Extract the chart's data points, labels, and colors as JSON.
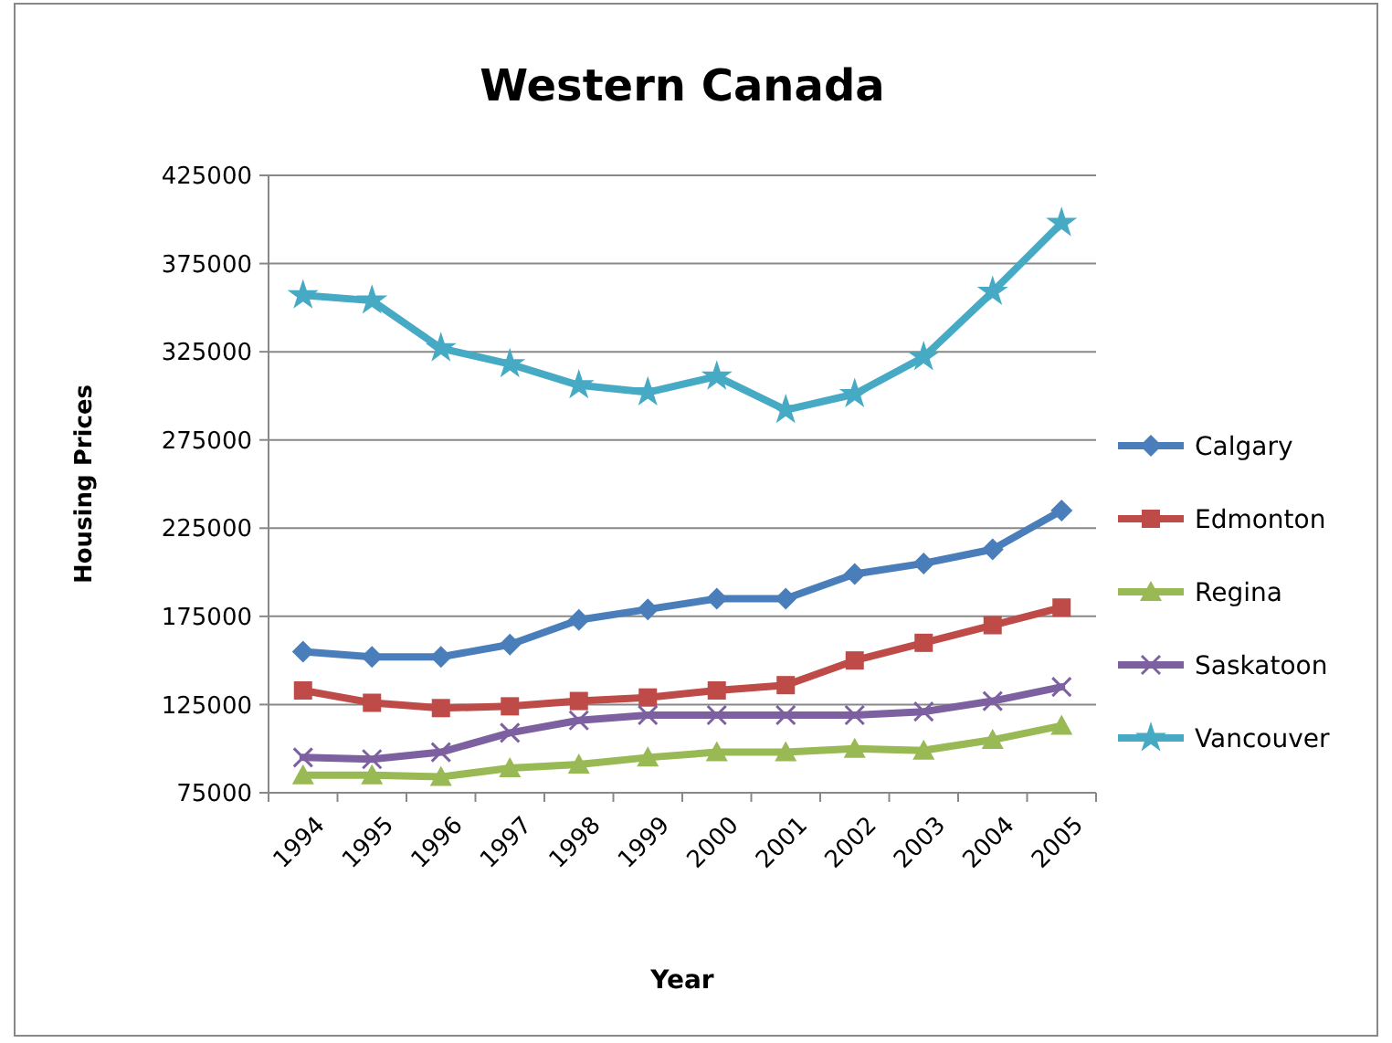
{
  "chart_data": {
    "type": "line",
    "title": "Western Canada",
    "xlabel": "Year",
    "ylabel": "Housing Prices",
    "categories": [
      "1994",
      "1995",
      "1996",
      "1997",
      "1998",
      "1999",
      "2000",
      "2001",
      "2002",
      "2003",
      "2004",
      "2005"
    ],
    "series": [
      {
        "name": "Calgary",
        "color": "#4a7ebb",
        "marker": "diamond",
        "values": [
          155000,
          152000,
          152000,
          159000,
          173000,
          179000,
          185000,
          185000,
          199000,
          205000,
          213000,
          235000
        ]
      },
      {
        "name": "Edmonton",
        "color": "#be4b48",
        "marker": "square",
        "values": [
          133000,
          126000,
          123000,
          124000,
          127000,
          129000,
          133000,
          136000,
          150000,
          160000,
          170000,
          180000
        ]
      },
      {
        "name": "Regina",
        "color": "#98b954",
        "marker": "triangle",
        "values": [
          85000,
          85000,
          84000,
          89000,
          91000,
          95000,
          98000,
          98000,
          100000,
          99000,
          105000,
          113000
        ]
      },
      {
        "name": "Saskatoon",
        "color": "#7d60a0",
        "marker": "cross",
        "values": [
          95000,
          94000,
          98000,
          109000,
          116000,
          119000,
          119000,
          119000,
          119000,
          121000,
          127000,
          135000
        ]
      },
      {
        "name": "Vancouver",
        "color": "#46aac5",
        "marker": "star",
        "values": [
          357000,
          354000,
          327000,
          318000,
          306000,
          302000,
          311000,
          292000,
          301000,
          322000,
          359000,
          398000
        ]
      }
    ],
    "ylim": [
      75000,
      425000
    ],
    "yticks": [
      75000,
      125000,
      175000,
      225000,
      275000,
      325000,
      375000,
      425000
    ],
    "grid": "y",
    "legend": "right"
  }
}
